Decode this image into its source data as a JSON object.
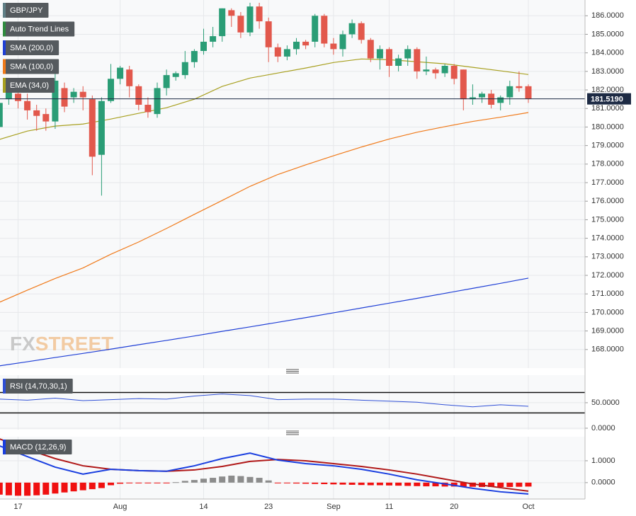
{
  "chart_data": [
    {
      "type": "candlestick",
      "categories": [
        null,
        null,
        "17",
        null,
        null,
        null,
        null,
        null,
        null,
        null,
        null,
        null,
        null,
        "Aug",
        null,
        null,
        null,
        null,
        null,
        null,
        null,
        null,
        "14",
        null,
        null,
        null,
        null,
        null,
        null,
        "23",
        null,
        null,
        null,
        null,
        null,
        null,
        "Sep",
        null,
        null,
        null,
        null,
        null,
        "11",
        null,
        null,
        null,
        null,
        null,
        null,
        "20",
        null,
        null,
        null,
        null,
        null,
        null,
        null,
        "Oct"
      ],
      "series": [
        {
          "name": "GBP/JPY",
          "color": "#5f7f86",
          "up_color": "#2a9d76",
          "down_color": "#e2584c",
          "open": [
            180.0,
            181.5,
            181.8,
            181.4,
            180.9,
            180.7,
            180.3,
            182.1,
            181.6,
            181.9,
            181.5,
            178.5,
            181.4,
            182.6,
            183.1,
            182.2,
            181.2,
            180.7,
            182.1,
            182.7,
            182.8,
            183.5,
            184.1,
            184.6,
            184.9,
            186.3,
            186.0,
            185.1,
            186.5,
            185.7,
            184.3,
            183.8,
            184.2,
            184.6,
            184.6,
            186.0,
            184.5,
            184.2,
            185.0,
            185.6,
            184.7,
            183.7,
            184.2,
            183.3,
            183.7,
            184.2,
            183.0,
            183.1,
            182.9,
            183.3,
            183.1,
            181.5,
            181.6,
            181.8,
            181.3,
            181.6,
            182.2,
            182.2
          ],
          "high": [
            181.6,
            182.6,
            182.0,
            181.8,
            181.2,
            181.0,
            183.1,
            182.4,
            182.1,
            182.2,
            181.7,
            181.6,
            183.4,
            183.3,
            183.3,
            182.3,
            181.6,
            182.4,
            183.1,
            183.0,
            184.1,
            184.2,
            185.3,
            185.4,
            186.4,
            186.4,
            186.2,
            186.7,
            186.7,
            185.9,
            184.5,
            184.4,
            184.8,
            184.7,
            186.1,
            186.1,
            184.8,
            185.2,
            185.8,
            185.7,
            184.8,
            184.4,
            184.3,
            183.9,
            184.4,
            184.3,
            183.8,
            183.2,
            183.4,
            183.4,
            183.1,
            182.3,
            181.9,
            182.0,
            181.7,
            182.5,
            183.0,
            182.3
          ],
          "low": [
            179.6,
            181.2,
            181.0,
            180.4,
            179.8,
            179.8,
            179.9,
            180.8,
            181.3,
            180.9,
            177.4,
            176.3,
            181.3,
            182.3,
            181.6,
            180.9,
            180.5,
            180.5,
            181.7,
            182.5,
            182.6,
            183.2,
            183.9,
            184.3,
            184.6,
            185.4,
            184.8,
            184.9,
            185.3,
            183.5,
            183.5,
            183.6,
            183.9,
            184.2,
            184.3,
            184.3,
            183.9,
            183.8,
            184.8,
            184.5,
            183.5,
            183.1,
            182.7,
            183.0,
            183.3,
            182.6,
            182.8,
            182.6,
            182.7,
            182.3,
            180.9,
            181.2,
            181.3,
            181.0,
            180.9,
            181.2,
            181.9,
            181.3
          ],
          "close": [
            181.3,
            182.1,
            181.4,
            180.9,
            180.6,
            180.3,
            182.5,
            181.1,
            181.9,
            181.6,
            178.4,
            181.4,
            182.6,
            183.2,
            182.2,
            181.2,
            180.8,
            182.1,
            182.8,
            182.9,
            183.5,
            184.1,
            184.6,
            184.9,
            186.4,
            186.0,
            185.1,
            186.5,
            185.7,
            184.3,
            183.8,
            184.2,
            184.6,
            184.4,
            186.0,
            184.5,
            184.2,
            185.0,
            185.6,
            184.7,
            183.7,
            184.2,
            183.3,
            183.7,
            184.2,
            183.0,
            183.1,
            182.9,
            183.3,
            182.6,
            181.5,
            181.6,
            181.8,
            181.2,
            181.6,
            182.2,
            182.1,
            181.52
          ]
        },
        {
          "name": "Auto Trend Lines",
          "color": "#2e8b3e"
        },
        {
          "name": "SMA (200,0)",
          "color": "#1f3fd6",
          "x": [
            0,
            3,
            6,
            9,
            12,
            15,
            18,
            21,
            24,
            27,
            30,
            33,
            36,
            39,
            42,
            45,
            48,
            51,
            54,
            57
          ],
          "values": [
            167.12,
            167.34,
            167.57,
            167.79,
            168.02,
            168.26,
            168.49,
            168.73,
            168.98,
            169.22,
            169.47,
            169.72,
            169.98,
            170.24,
            170.5,
            170.76,
            171.03,
            171.3,
            171.57,
            171.85
          ]
        },
        {
          "name": "SMA (100,0)",
          "color": "#f07a1a",
          "x": [
            0,
            3,
            6,
            9,
            12,
            15,
            18,
            21,
            24,
            27,
            30,
            33,
            36,
            39,
            42,
            45,
            48,
            51,
            54,
            57
          ],
          "values": [
            170.55,
            171.2,
            171.83,
            172.4,
            173.14,
            173.8,
            174.53,
            175.29,
            176.04,
            176.8,
            177.44,
            177.96,
            178.45,
            178.92,
            179.35,
            179.72,
            180.02,
            180.3,
            180.53,
            180.78
          ]
        },
        {
          "name": "EMA (34,0)",
          "color": "#a8a020",
          "x": [
            0,
            3,
            6,
            9,
            12,
            15,
            18,
            21,
            24,
            27,
            30,
            33,
            36,
            39,
            42,
            45,
            48,
            51,
            54,
            57
          ],
          "values": [
            179.33,
            179.78,
            180.05,
            180.16,
            180.43,
            180.74,
            181.04,
            181.5,
            182.19,
            182.64,
            182.91,
            183.18,
            183.48,
            183.67,
            183.63,
            183.52,
            183.41,
            183.22,
            183.03,
            182.83
          ]
        }
      ],
      "ylim": [
        167.0,
        186.85
      ],
      "yticks": [
        {
          "value": 168,
          "label": "168.0000"
        },
        {
          "value": 169,
          "label": "169.0000"
        },
        {
          "value": 170,
          "label": "170.0000"
        },
        {
          "value": 171,
          "label": "171.0000"
        },
        {
          "value": 172,
          "label": "172.0000"
        },
        {
          "value": 173,
          "label": "173.0000"
        },
        {
          "value": 174,
          "label": "174.0000"
        },
        {
          "value": 175,
          "label": "175.0000"
        },
        {
          "value": 176,
          "label": "176.0000"
        },
        {
          "value": 177,
          "label": "177.0000"
        },
        {
          "value": 178,
          "label": "178.0000"
        },
        {
          "value": 179,
          "label": "179.0000"
        },
        {
          "value": 180,
          "label": "180.0000"
        },
        {
          "value": 181,
          "label": "181.0000"
        },
        {
          "value": 182,
          "label": "182.0000"
        },
        {
          "value": 183,
          "label": "183.0000"
        },
        {
          "value": 184,
          "label": "184.0000"
        },
        {
          "value": 185,
          "label": "185.0000"
        },
        {
          "value": 186,
          "label": "186.0000"
        }
      ],
      "last_price": {
        "value": 181.519,
        "label": "181.5190"
      },
      "watermark": [
        "FX",
        "STREET"
      ],
      "grid": true
    },
    {
      "type": "line",
      "title": "RSI (14,70,30,1)",
      "x": [
        0,
        3,
        6,
        9,
        12,
        15,
        18,
        21,
        24,
        27,
        30,
        33,
        36,
        39,
        42,
        45,
        48,
        51,
        54,
        57
      ],
      "series": [
        {
          "color": "#2f4fd6",
          "values": [
            57,
            55,
            59,
            54,
            56,
            58,
            57,
            63,
            67,
            64,
            56,
            57,
            57,
            55,
            53,
            51,
            46,
            42,
            46,
            43
          ]
        }
      ],
      "levels": [
        70,
        30
      ],
      "ylim": [
        -2.8,
        104
      ],
      "yticks": [
        {
          "value": 50,
          "label": "50.0000"
        },
        {
          "value": 0,
          "label": "0.0000"
        }
      ],
      "grid": true
    },
    {
      "type": "macd",
      "title": "MACD (12,26,9)",
      "x": [
        0,
        3,
        6,
        9,
        12,
        15,
        18,
        21,
        24,
        27,
        30,
        33,
        36,
        39,
        42,
        45,
        48,
        51,
        54,
        57
      ],
      "macd": {
        "color": "#1a3fe0",
        "values": [
          1.68,
          1.19,
          0.71,
          0.39,
          0.61,
          0.55,
          0.52,
          0.77,
          1.1,
          1.35,
          1.03,
          0.87,
          0.77,
          0.61,
          0.39,
          0.13,
          -0.06,
          -0.26,
          -0.42,
          -0.52
        ]
      },
      "signal": {
        "color": "#b01818",
        "values": [
          2.0,
          1.52,
          1.1,
          0.77,
          0.61,
          0.55,
          0.52,
          0.58,
          0.74,
          0.97,
          1.06,
          1.0,
          0.87,
          0.74,
          0.58,
          0.39,
          0.16,
          -0.06,
          -0.23,
          -0.39
        ]
      },
      "histogram": {
        "up_color": "#8c8c8c",
        "down_color": "#f01010",
        "values": [
          -0.55,
          -0.58,
          -0.6,
          -0.6,
          -0.58,
          -0.55,
          -0.5,
          -0.45,
          -0.4,
          -0.35,
          -0.3,
          -0.25,
          -0.12,
          -0.05,
          -0.03,
          -0.03,
          -0.03,
          -0.02,
          -0.01,
          0.02,
          0.08,
          0.12,
          0.18,
          0.22,
          0.28,
          0.32,
          0.3,
          0.26,
          0.22,
          0.1,
          -0.02,
          -0.03,
          -0.04,
          -0.05,
          -0.06,
          -0.07,
          -0.08,
          -0.09,
          -0.1,
          -0.11,
          -0.12,
          -0.12,
          -0.13,
          -0.14,
          -0.15,
          -0.16,
          -0.17,
          -0.17,
          -0.18,
          -0.18,
          -0.19,
          -0.19,
          -0.2,
          -0.2,
          -0.2,
          -0.2,
          -0.19,
          -0.18
        ]
      },
      "ylim": [
        -0.75,
        2.1
      ],
      "yticks": [
        {
          "value": 1,
          "label": "1.0000"
        },
        {
          "value": 0,
          "label": "0.0000"
        }
      ],
      "grid": true
    }
  ]
}
